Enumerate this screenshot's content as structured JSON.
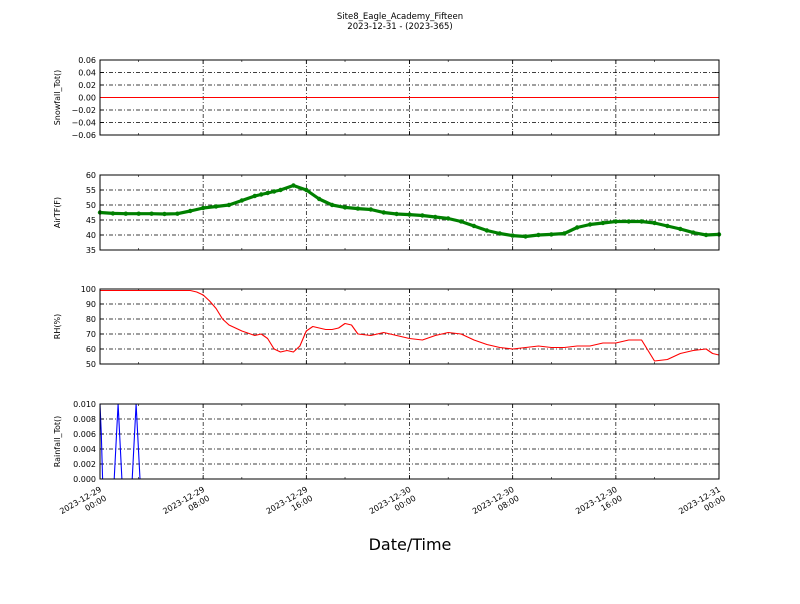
{
  "figure": {
    "title": "Site8_Eagle_Academy_Fifteen",
    "subtitle": "2023-12-31 - (2023-365)",
    "xlabel": "Date/Time"
  },
  "chart_data": [
    {
      "type": "line",
      "ylabel": "Snowfall_Tot()",
      "ylim": [
        -0.06,
        0.06
      ],
      "yticks": [
        -0.06,
        -0.04,
        -0.02,
        0.0,
        0.02,
        0.04,
        0.06
      ],
      "ytick_labels": [
        "−0.06",
        "−0.04",
        "−0.02",
        "0.00",
        "0.02",
        "0.04",
        "0.06"
      ],
      "grid": true,
      "series": [
        {
          "color": "#ff0000",
          "marker": "none",
          "x": [
            0,
            48
          ],
          "values": [
            0,
            0
          ]
        }
      ]
    },
    {
      "type": "line",
      "ylabel": "AirTF(F)",
      "ylim": [
        35,
        60
      ],
      "yticks": [
        35,
        40,
        45,
        50,
        55,
        60
      ],
      "ytick_labels": [
        "35",
        "40",
        "45",
        "50",
        "55",
        "60"
      ],
      "grid": true,
      "series": [
        {
          "color": "#008000",
          "marker": "dot",
          "x": [
            0,
            1,
            2,
            3,
            4,
            5,
            6,
            7,
            8,
            9,
            10,
            11,
            12,
            12.5,
            13,
            13.5,
            14,
            15,
            16,
            17,
            18,
            19,
            20,
            21,
            22,
            23,
            24,
            25,
            26,
            27,
            28,
            29,
            30,
            31,
            32,
            33,
            34,
            35,
            36,
            37,
            38,
            39,
            40,
            41,
            42,
            43,
            44,
            45,
            46,
            47,
            48
          ],
          "values": [
            47.5,
            47.2,
            47.1,
            47.1,
            47.1,
            47.0,
            47.1,
            48.0,
            49.0,
            49.5,
            50.0,
            51.5,
            53.0,
            53.5,
            54.0,
            54.5,
            55.0,
            56.5,
            55.0,
            52.0,
            50.0,
            49.2,
            48.8,
            48.5,
            47.5,
            47.0,
            46.8,
            46.5,
            46.0,
            45.5,
            44.5,
            43.0,
            41.5,
            40.5,
            39.8,
            39.5,
            40.0,
            40.2,
            40.5,
            42.5,
            43.5,
            44.0,
            44.5,
            44.5,
            44.5,
            44.0,
            43.0,
            42.0,
            40.8,
            40.0,
            40.2
          ]
        }
      ]
    },
    {
      "type": "line",
      "ylabel": "RH(%)",
      "ylim": [
        50,
        100
      ],
      "yticks": [
        50,
        60,
        70,
        80,
        90,
        100
      ],
      "ytick_labels": [
        "50",
        "60",
        "70",
        "80",
        "90",
        "100"
      ],
      "grid": true,
      "series": [
        {
          "color": "#ff0000",
          "marker": "none",
          "x": [
            0,
            2,
            4,
            6,
            7,
            7.5,
            8,
            8.5,
            9,
            9.5,
            10,
            11,
            12,
            12.5,
            13,
            13.5,
            14,
            14.5,
            15,
            15.5,
            16,
            16.5,
            17,
            17.5,
            18,
            18.5,
            19,
            19.5,
            20,
            21,
            22,
            23,
            24,
            25,
            26,
            27,
            28,
            29,
            30,
            31,
            32,
            33,
            34,
            35,
            36,
            37,
            38,
            39,
            40,
            41,
            42,
            43,
            44,
            45,
            46,
            47,
            47.5,
            48
          ],
          "values": [
            99,
            99,
            99,
            99,
            99,
            98,
            96,
            92,
            87,
            80,
            76,
            72,
            69,
            70,
            67,
            60,
            58,
            59,
            58,
            62,
            72,
            75,
            74,
            73,
            73,
            74,
            77,
            76,
            70,
            69,
            71,
            69,
            67,
            66,
            69,
            71,
            70,
            66,
            63,
            61,
            60,
            61,
            62,
            61,
            61,
            62,
            62,
            64,
            64,
            66,
            66,
            52,
            53,
            57,
            59,
            60,
            57,
            56
          ]
        }
      ]
    },
    {
      "type": "line",
      "ylabel": "Rainfall_Tot()",
      "ylim": [
        0,
        0.01
      ],
      "yticks": [
        0,
        0.002,
        0.004,
        0.006,
        0.008,
        0.01
      ],
      "ytick_labels": [
        "0.000",
        "0.002",
        "0.004",
        "0.006",
        "0.008",
        "0.010"
      ],
      "grid": true,
      "series": [
        {
          "color": "#0000ff",
          "marker": "none",
          "x": [
            0,
            0.1,
            0.2,
            0.3,
            1.1,
            1.4,
            1.7,
            2.5,
            2.8,
            3.1,
            48
          ],
          "values": [
            0.01,
            0.006,
            0,
            0,
            0,
            0.01,
            0,
            0,
            0.01,
            0,
            0
          ]
        }
      ]
    }
  ],
  "x_axis": {
    "x_unit": "hours since 2023-12-29 00:00",
    "xlim": [
      0,
      48
    ],
    "ticks": [
      {
        "x": 0,
        "date": "2023-12-29",
        "time": "00:00"
      },
      {
        "x": 8,
        "date": "2023-12-29",
        "time": "08:00"
      },
      {
        "x": 16,
        "date": "2023-12-29",
        "time": "16:00"
      },
      {
        "x": 24,
        "date": "2023-12-30",
        "time": "00:00"
      },
      {
        "x": 32,
        "date": "2023-12-30",
        "time": "08:00"
      },
      {
        "x": 40,
        "date": "2023-12-30",
        "time": "16:00"
      },
      {
        "x": 48,
        "date": "2023-12-31",
        "time": "00:00"
      }
    ],
    "minor_ticks": [
      {
        "x": 0
      },
      {
        "x": 3
      },
      {
        "x": 11
      },
      {
        "x": 19
      },
      {
        "x": 27
      },
      {
        "x": 35
      },
      {
        "x": 43
      }
    ]
  }
}
